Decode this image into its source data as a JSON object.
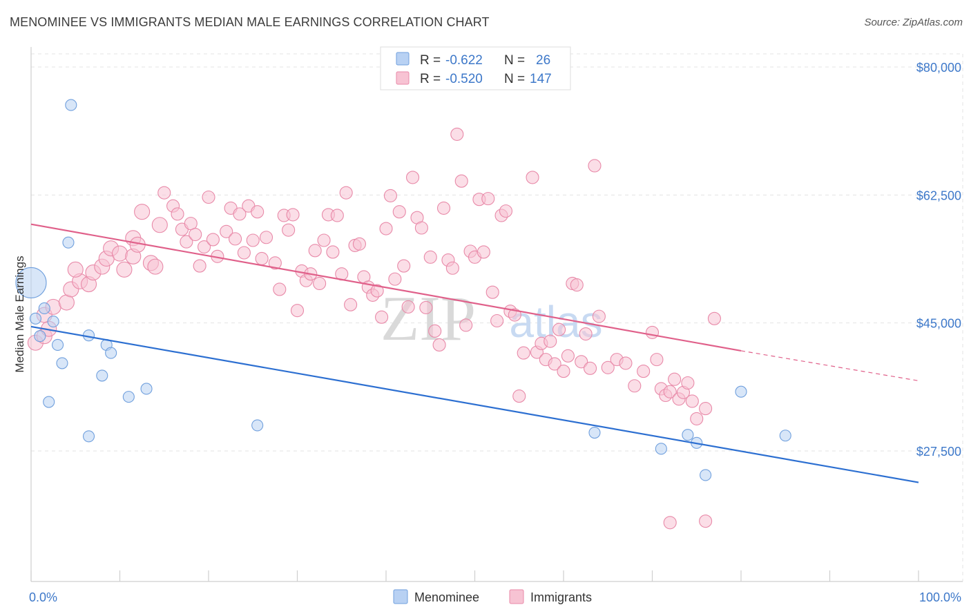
{
  "title": "MENOMINEE VS IMMIGRANTS MEDIAN MALE EARNINGS CORRELATION CHART",
  "source": "Source: ZipAtlas.com",
  "chart_data": {
    "type": "scatter",
    "ylabel": "Median Male Earnings",
    "xlim": [
      0,
      100
    ],
    "ylim": [
      15000,
      82000
    ],
    "y_ticks": [
      {
        "value": 80000,
        "label": "$80,000"
      },
      {
        "value": 62500,
        "label": "$62,500"
      },
      {
        "value": 45000,
        "label": "$45,000"
      },
      {
        "value": 27500,
        "label": "$27,500"
      }
    ],
    "x_tick_labels": [
      {
        "value": 0,
        "label": "0.0%"
      },
      {
        "value": 100,
        "label": "100.0%"
      }
    ],
    "grid": true,
    "legend_position": "top-center",
    "watermark": {
      "zip": "ZIP",
      "atlas": "atlas"
    },
    "series": [
      {
        "name": "Menominee",
        "color": "#6f9fdd",
        "fill": "#b8d1f3",
        "line_color": "#2c6fd1",
        "R": "-0.622",
        "N": "26",
        "trend": {
          "x0": 0,
          "y0": 44500,
          "x1": 100,
          "y1": 23200
        },
        "points": [
          [
            0,
            50500,
            22
          ],
          [
            4.5,
            74800,
            8
          ],
          [
            4.2,
            56000,
            8
          ],
          [
            0.5,
            45600,
            8
          ],
          [
            1.5,
            47000,
            8
          ],
          [
            2.5,
            45200,
            8
          ],
          [
            1,
            43200,
            8
          ],
          [
            3,
            42000,
            8
          ],
          [
            3.5,
            39500,
            8
          ],
          [
            2,
            34200,
            8
          ],
          [
            6.5,
            43300,
            8
          ],
          [
            8.5,
            42000,
            8
          ],
          [
            9,
            40900,
            8
          ],
          [
            8,
            37800,
            8
          ],
          [
            11,
            34900,
            8
          ],
          [
            13,
            36000,
            8
          ],
          [
            6.5,
            29500,
            8
          ],
          [
            25.5,
            31000,
            8
          ],
          [
            63.5,
            30000,
            8
          ],
          [
            71,
            27800,
            8
          ],
          [
            74,
            29700,
            8
          ],
          [
            75,
            28600,
            8
          ],
          [
            76,
            24200,
            8
          ],
          [
            80,
            35600,
            8
          ],
          [
            85,
            29600,
            8
          ]
        ]
      },
      {
        "name": "Immigrants",
        "color": "#e889a8",
        "fill": "#f7c3d3",
        "line_color": "#e0608a",
        "R": "-0.520",
        "N": "147",
        "trend": {
          "x0": 0,
          "y0": 58500,
          "x1": 80,
          "y1": 41200
        },
        "trend_dash": {
          "x0": 80,
          "y0": 41200,
          "x1": 100,
          "y1": 37100
        },
        "points": [
          [
            0.5,
            42300,
            11
          ],
          [
            1.5,
            43200,
            11
          ],
          [
            2,
            44200,
            11
          ],
          [
            1.5,
            46100,
            11
          ],
          [
            2.5,
            47200,
            11
          ],
          [
            4,
            47800,
            11
          ],
          [
            4.5,
            49600,
            11
          ],
          [
            5.5,
            50700,
            11
          ],
          [
            6.5,
            50300,
            11
          ],
          [
            5,
            52300,
            11
          ],
          [
            7,
            51900,
            11
          ],
          [
            8,
            52700,
            11
          ],
          [
            8.5,
            53800,
            11
          ],
          [
            9,
            55200,
            11
          ],
          [
            10,
            54500,
            11
          ],
          [
            10.5,
            52300,
            11
          ],
          [
            11.5,
            54100,
            11
          ],
          [
            11.5,
            56600,
            11
          ],
          [
            12,
            55700,
            11
          ],
          [
            12.5,
            60200,
            11
          ],
          [
            13.5,
            53200,
            11
          ],
          [
            14,
            52700,
            11
          ],
          [
            14.5,
            58400,
            11
          ],
          [
            15,
            62800,
            9
          ],
          [
            16,
            61000,
            9
          ],
          [
            16.5,
            59900,
            9
          ],
          [
            17,
            57800,
            9
          ],
          [
            17.5,
            56100,
            9
          ],
          [
            18,
            58600,
            9
          ],
          [
            18.5,
            57100,
            9
          ],
          [
            19,
            52800,
            9
          ],
          [
            19.5,
            55400,
            9
          ],
          [
            20,
            62200,
            9
          ],
          [
            20.5,
            56400,
            9
          ],
          [
            21,
            54100,
            9
          ],
          [
            22,
            57500,
            9
          ],
          [
            22.5,
            60700,
            9
          ],
          [
            23,
            56500,
            9
          ],
          [
            23.5,
            59900,
            9
          ],
          [
            24,
            54600,
            9
          ],
          [
            24.5,
            61000,
            9
          ],
          [
            25,
            56300,
            9
          ],
          [
            25.5,
            60200,
            9
          ],
          [
            26,
            53800,
            9
          ],
          [
            26.5,
            56700,
            9
          ],
          [
            27.5,
            53200,
            9
          ],
          [
            28,
            49600,
            9
          ],
          [
            28.5,
            59700,
            9
          ],
          [
            29,
            57700,
            9
          ],
          [
            29.5,
            59800,
            9
          ],
          [
            30,
            46700,
            9
          ],
          [
            30.5,
            52100,
            9
          ],
          [
            31,
            50800,
            9
          ],
          [
            31.5,
            51700,
            9
          ],
          [
            32,
            54900,
            9
          ],
          [
            32.5,
            50400,
            9
          ],
          [
            33,
            56300,
            9
          ],
          [
            33.5,
            59800,
            9
          ],
          [
            34,
            54700,
            9
          ],
          [
            34.5,
            59700,
            9
          ],
          [
            35,
            51700,
            9
          ],
          [
            35.5,
            62800,
            9
          ],
          [
            36,
            47500,
            9
          ],
          [
            36.5,
            55600,
            9
          ],
          [
            37,
            55800,
            9
          ],
          [
            37.5,
            51300,
            9
          ],
          [
            38,
            49900,
            9
          ],
          [
            38.5,
            48800,
            9
          ],
          [
            39,
            49400,
            9
          ],
          [
            39.5,
            45800,
            9
          ],
          [
            40,
            57900,
            9
          ],
          [
            40.5,
            62400,
            9
          ],
          [
            41,
            51000,
            9
          ],
          [
            41.5,
            60200,
            9
          ],
          [
            42,
            52800,
            9
          ],
          [
            42.5,
            47200,
            9
          ],
          [
            43,
            64900,
            9
          ],
          [
            43.5,
            59400,
            9
          ],
          [
            44,
            58000,
            9
          ],
          [
            44.5,
            47100,
            9
          ],
          [
            45,
            54000,
            9
          ],
          [
            45.5,
            43900,
            9
          ],
          [
            46,
            42000,
            9
          ],
          [
            46.5,
            60700,
            9
          ],
          [
            47,
            53600,
            9
          ],
          [
            47.5,
            52500,
            9
          ],
          [
            48,
            70800,
            9
          ],
          [
            48.5,
            64400,
            9
          ],
          [
            49,
            44700,
            9
          ],
          [
            49.5,
            54800,
            9
          ],
          [
            50,
            54000,
            9
          ],
          [
            50.5,
            61900,
            9
          ],
          [
            51,
            54700,
            9
          ],
          [
            51.5,
            62000,
            9
          ],
          [
            52,
            49200,
            9
          ],
          [
            52.5,
            45300,
            9
          ],
          [
            53,
            59700,
            9
          ],
          [
            53.5,
            60300,
            9
          ],
          [
            54,
            46600,
            9
          ],
          [
            54.5,
            46100,
            9
          ],
          [
            55,
            35000,
            9
          ],
          [
            55.5,
            40900,
            9
          ],
          [
            56.5,
            64900,
            9
          ],
          [
            57,
            41000,
            9
          ],
          [
            57.5,
            42200,
            9
          ],
          [
            58,
            40000,
            9
          ],
          [
            58.5,
            42500,
            9
          ],
          [
            59,
            39400,
            9
          ],
          [
            59.5,
            44100,
            9
          ],
          [
            60,
            38400,
            9
          ],
          [
            60.5,
            40500,
            9
          ],
          [
            61,
            50400,
            9
          ],
          [
            61.5,
            50200,
            9
          ],
          [
            62,
            39700,
            9
          ],
          [
            62.5,
            43500,
            9
          ],
          [
            63,
            38800,
            9
          ],
          [
            63.5,
            66500,
            9
          ],
          [
            64,
            45900,
            9
          ],
          [
            65,
            38900,
            9
          ],
          [
            66,
            40000,
            9
          ],
          [
            67,
            39500,
            9
          ],
          [
            68,
            36400,
            9
          ],
          [
            69,
            38400,
            9
          ],
          [
            70,
            43700,
            9
          ],
          [
            70.5,
            40000,
            9
          ],
          [
            71,
            36000,
            9
          ],
          [
            71.5,
            35100,
            9
          ],
          [
            72,
            35600,
            9
          ],
          [
            72.5,
            37300,
            9
          ],
          [
            73,
            34600,
            9
          ],
          [
            73.5,
            35500,
            9
          ],
          [
            74,
            36800,
            9
          ],
          [
            74.5,
            34300,
            9
          ],
          [
            75,
            31900,
            9
          ],
          [
            76,
            33300,
            9
          ],
          [
            72,
            17700,
            9
          ],
          [
            76,
            17900,
            9
          ],
          [
            77,
            45600,
            9
          ]
        ]
      }
    ]
  }
}
